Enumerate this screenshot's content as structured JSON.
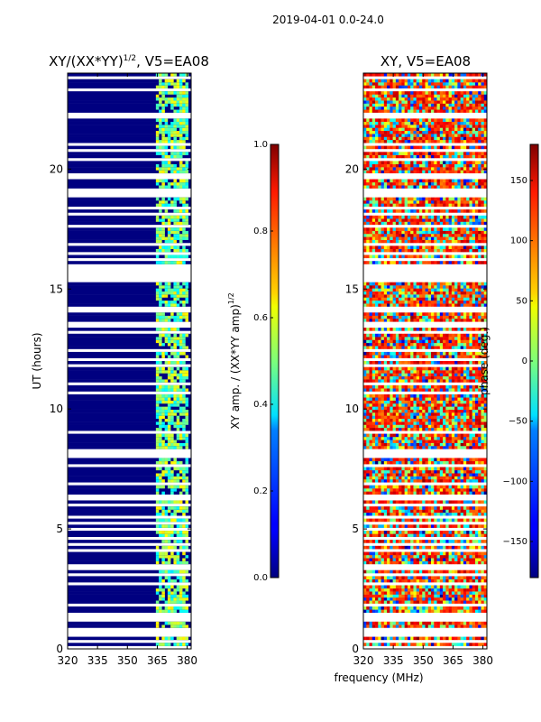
{
  "figure": {
    "suptitle": "2019-04-01 0.0-24.0",
    "xlabel_shared": "frequency (MHz)"
  },
  "chart_data": [
    {
      "type": "heatmap",
      "title": "XY/(XX*YY)",
      "title_exp": "1/2",
      "title_suffix": ", V5=EA08",
      "xlabel": "",
      "ylabel": "UT (hours)",
      "xlim": [
        320,
        382
      ],
      "ylim": [
        0,
        24
      ],
      "xticks": [
        "320",
        "335",
        "350",
        "365",
        "380"
      ],
      "xtick_values": [
        320,
        335,
        350,
        365,
        380
      ],
      "yticks": [
        "0",
        "5",
        "10",
        "15",
        "20"
      ],
      "ytick_values": [
        0,
        5,
        10,
        15,
        20
      ],
      "colormap": "jet",
      "colorbar": {
        "label": "XY amp. / (XX*YY amp)",
        "label_exp": "1/2",
        "range": [
          0.0,
          1.0
        ],
        "ticks": [
          "0.0",
          "0.2",
          "0.4",
          "0.6",
          "0.8",
          "1.0"
        ],
        "tick_values": [
          0.0,
          0.2,
          0.4,
          0.6,
          0.8,
          1.0
        ]
      },
      "summary": {
        "background_level": 0.0,
        "active_band_mhz": [
          364,
          380
        ],
        "active_band_level": [
          0.35,
          0.65
        ]
      }
    },
    {
      "type": "heatmap",
      "title": "XY, V5=EA08",
      "xlabel": "frequency (MHz)",
      "ylabel": "",
      "xlim": [
        320,
        382
      ],
      "ylim": [
        0,
        24
      ],
      "xticks": [
        "320",
        "335",
        "350",
        "365",
        "380"
      ],
      "xtick_values": [
        320,
        335,
        350,
        365,
        380
      ],
      "yticks": [
        "0",
        "5",
        "10",
        "15",
        "20"
      ],
      "ytick_values": [
        0,
        5,
        10,
        15,
        20
      ],
      "colormap": "jet",
      "colorbar": {
        "label": "phase (deg.)",
        "range": [
          -180,
          180
        ],
        "ticks": [
          "−150",
          "−100",
          "−50",
          "0",
          "50",
          "100",
          "150"
        ],
        "tick_values": [
          -150,
          -100,
          -50,
          0,
          50,
          100,
          150
        ]
      },
      "summary": {
        "dominant_phase_deg": [
          90,
          160
        ],
        "scatter_phase_deg": [
          -120,
          60
        ]
      }
    }
  ],
  "colors": {
    "jet_low": "#00007f",
    "jet_high": "#7f0000",
    "axis": "#000000",
    "background": "#ffffff"
  }
}
